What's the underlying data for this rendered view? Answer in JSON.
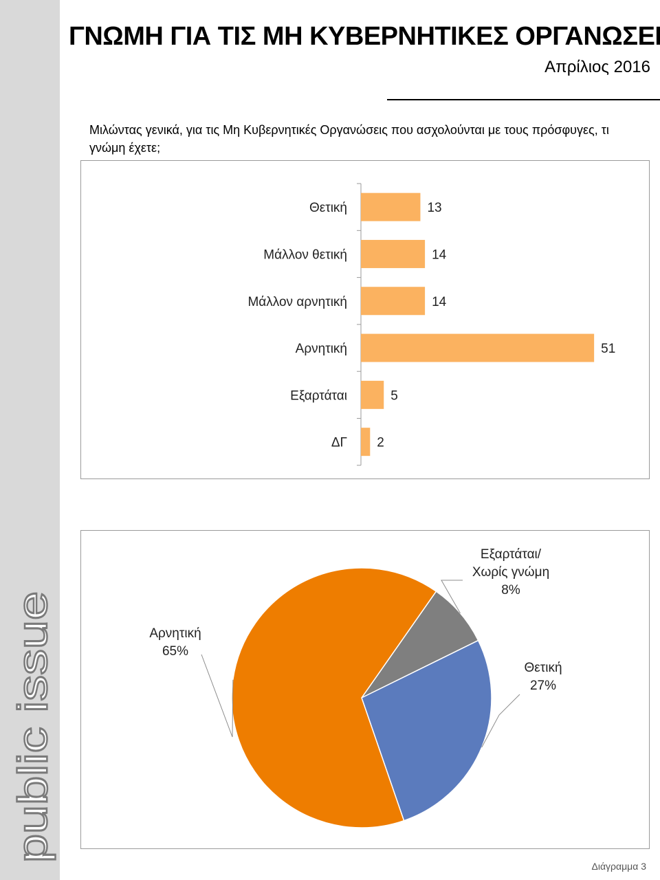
{
  "header": {
    "title": "ΓΝΩΜΗ ΓΙΑ ΤΙΣ ΜΗ ΚΥΒΕΡΝΗΤΙΚΕΣ ΟΡΓΑΝΩΣΕΙΣ",
    "date": "Απρίλιος 2016"
  },
  "question": "Μιλώντας γενικά, για τις Μη Κυβερνητικές Οργανώσεις που ασχολούνται με τους πρόσφυγες, τι γνώμη έχετε;",
  "brand": "public issue",
  "footer": "Διάγραμμα 3",
  "colors": {
    "bar": "#fbb260",
    "pie_negative": "#ee7d00",
    "pie_positive": "#5b7bbd",
    "pie_depends": "#7f7f7f"
  },
  "chart_data": [
    {
      "type": "bar",
      "orientation": "horizontal",
      "categories": [
        "Θετική",
        "Μάλλον θετική",
        "Μάλλον αρνητική",
        "Αρνητική",
        "Εξαρτάται",
        "ΔΓ"
      ],
      "values": [
        13,
        14,
        14,
        51,
        5,
        2
      ],
      "value_labels": [
        "13",
        "14",
        "14",
        "51",
        "5",
        "2"
      ],
      "xlim": [
        0,
        60
      ],
      "grid": false,
      "title": ""
    },
    {
      "type": "pie",
      "slices": [
        {
          "label": "Εξαρτάται/ Χωρίς γνώμη",
          "label_lines": [
            "Εξαρτάται/",
            "Χωρίς γνώμη"
          ],
          "value": 8,
          "pct_label": "8%",
          "color": "#7f7f7f"
        },
        {
          "label": "Θετική",
          "label_lines": [
            "Θετική"
          ],
          "value": 27,
          "pct_label": "27%",
          "color": "#5b7bbd"
        },
        {
          "label": "Αρνητική",
          "label_lines": [
            "Αρνητική"
          ],
          "value": 65,
          "pct_label": "65%",
          "color": "#ee7d00"
        }
      ],
      "start_angle_deg": 35
    }
  ]
}
